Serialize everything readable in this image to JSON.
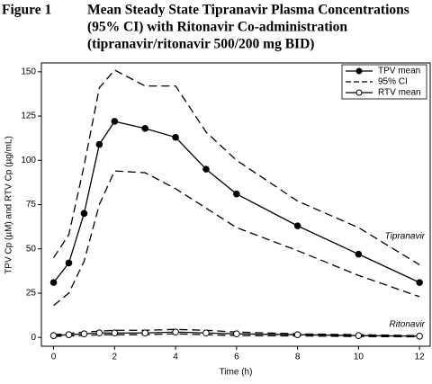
{
  "figure_label": "Figure 1",
  "chart_data": {
    "type": "line",
    "title_lines": [
      "Mean Steady State Tipranavir Plasma Concentrations",
      "(95% CI) with Ritonavir Co-administration",
      "(tipranavir/ritonavir 500/200 mg BID)"
    ],
    "x_label": "Time (h)",
    "y_label": "TPV Cp (µM) and RTV Cp (µg/mL)",
    "x": [
      0,
      0.5,
      1,
      1.5,
      2,
      3,
      4,
      5,
      6,
      8,
      10,
      12
    ],
    "xlim": [
      -0.4,
      12.35
    ],
    "xticks": [
      0,
      2,
      4,
      6,
      8,
      10,
      12
    ],
    "ylim": [
      -5,
      155
    ],
    "yticks": [
      0,
      25,
      50,
      75,
      100,
      125,
      150
    ],
    "ci_label": "95% CI",
    "series": [
      {
        "name": "TPV mean",
        "color": "#000000",
        "marker": "filled",
        "values": [
          31,
          42,
          70,
          109,
          122,
          118,
          113,
          95,
          81,
          63,
          47,
          31
        ],
        "ci_lower": [
          18,
          25,
          43,
          75,
          94,
          93,
          84,
          73,
          62,
          49,
          35,
          23
        ],
        "ci_upper": [
          45,
          58,
          97,
          141,
          151,
          142,
          142,
          116,
          100,
          77,
          62,
          41
        ]
      },
      {
        "name": "RTV mean",
        "color": "#000000",
        "marker": "open",
        "values": [
          1,
          1.5,
          2,
          2.5,
          2.5,
          2.5,
          3,
          2.5,
          2,
          1.5,
          1,
          0.7
        ],
        "ci_lower": [
          0.5,
          0.8,
          1,
          1.5,
          1.5,
          1.5,
          2,
          1.5,
          1,
          0.8,
          0.5,
          0.3
        ],
        "ci_upper": [
          1.5,
          2.2,
          3,
          3.5,
          4,
          4,
          4.5,
          4,
          3,
          2,
          1.5,
          1
        ]
      }
    ],
    "annotations": [
      "Tipranavir",
      "Ritonavir"
    ],
    "legend": "upper right"
  }
}
